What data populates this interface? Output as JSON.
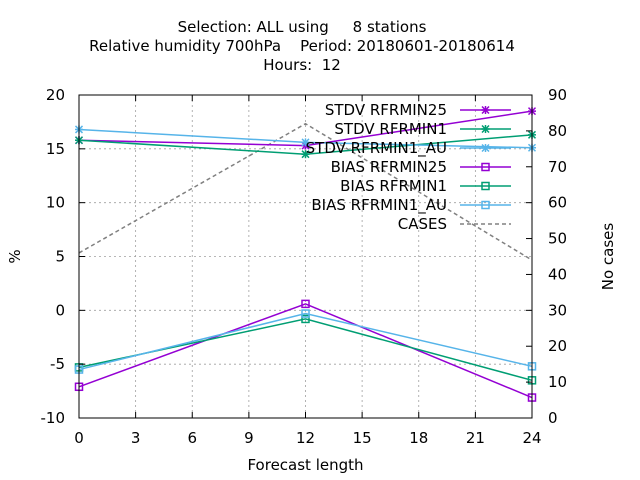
{
  "chart_data": {
    "type": "line",
    "title_lines": [
      "Selection: ALL using     8 stations",
      "Relative humidity 700hPa    Period: 20180601-20180614",
      "Hours:  12"
    ],
    "xlabel": "Forecast length",
    "ylabel": "%",
    "y2label": "No cases",
    "x": [
      0,
      12,
      24
    ],
    "xticks": [
      "0",
      "3",
      "6",
      "9",
      "12",
      "15",
      "18",
      "21",
      "24"
    ],
    "xlim": [
      0,
      24
    ],
    "ylim": [
      -10,
      20
    ],
    "yticks": [
      "-10",
      "-5",
      "0",
      "5",
      "10",
      "15",
      "20"
    ],
    "y2lim": [
      0,
      90
    ],
    "y2ticks": [
      "0",
      "10",
      "20",
      "30",
      "40",
      "50",
      "60",
      "70",
      "80",
      "90"
    ],
    "grid": true,
    "legend_position": "top-right",
    "series": [
      {
        "name": "STDV RFRMIN25",
        "axis": "y",
        "color": "#9400d3",
        "marker": "star",
        "dashed": false,
        "values": [
          15.8,
          15.3,
          18.5
        ]
      },
      {
        "name": "STDV RFRMIN1",
        "axis": "y",
        "color": "#009e73",
        "marker": "star",
        "dashed": false,
        "values": [
          15.8,
          14.5,
          16.3
        ]
      },
      {
        "name": "STDV RFRMIN1_AU",
        "axis": "y",
        "color": "#56b4e9",
        "marker": "star",
        "dashed": false,
        "values": [
          16.8,
          15.6,
          15.1
        ]
      },
      {
        "name": "BIAS RFRMIN25",
        "axis": "y",
        "color": "#9400d3",
        "marker": "square",
        "dashed": false,
        "values": [
          -7.1,
          0.6,
          -8.1
        ]
      },
      {
        "name": "BIAS RFRMIN1",
        "axis": "y",
        "color": "#009e73",
        "marker": "square",
        "dashed": false,
        "values": [
          -5.3,
          -0.8,
          -6.5
        ]
      },
      {
        "name": "BIAS RFRMIN1_AU",
        "axis": "y",
        "color": "#56b4e9",
        "marker": "square",
        "dashed": false,
        "values": [
          -5.5,
          -0.3,
          -5.2
        ]
      },
      {
        "name": "CASES",
        "axis": "y2",
        "color": "#808080",
        "marker": "none",
        "dashed": true,
        "values": [
          46,
          82,
          44
        ]
      }
    ]
  }
}
